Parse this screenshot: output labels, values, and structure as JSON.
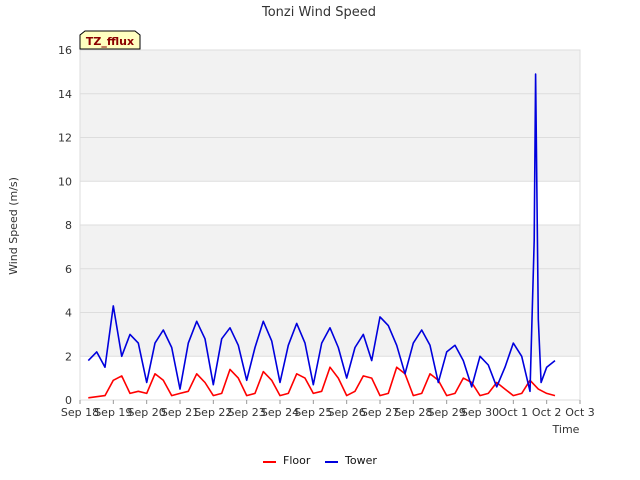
{
  "chart_data": {
    "type": "line",
    "title": "Tonzi Wind Speed",
    "xlabel": "Time",
    "ylabel": "Wind Speed (m/s)",
    "x_ticks": [
      "Sep 18",
      "Sep 19",
      "Sep 20",
      "Sep 21",
      "Sep 22",
      "Sep 23",
      "Sep 24",
      "Sep 25",
      "Sep 26",
      "Sep 27",
      "Sep 28",
      "Sep 29",
      "Sep 30",
      "Oct 1",
      "Oct 2",
      "Oct 3"
    ],
    "y_ticks": [
      "0",
      "2",
      "4",
      "6",
      "8",
      "10",
      "12",
      "14",
      "16"
    ],
    "ylim": [
      0,
      16
    ],
    "xlim_days": [
      0,
      15
    ],
    "grid": true,
    "legend": "bottom",
    "annotation": "TZ_fflux",
    "colors": {
      "Floor": "#ff0000",
      "Tower": "#0000dd",
      "plot_bg_band": "#f2f2f2",
      "annotation_bg": "#ffffc0"
    },
    "series": [
      {
        "name": "Floor",
        "x": [
          "Sep 18 06:00",
          "Sep 18 18:00",
          "Sep 19 00:00",
          "Sep 19 06:00",
          "Sep 19 12:00",
          "Sep 19 18:00",
          "Sep 20 00:00",
          "Sep 20 06:00",
          "Sep 20 12:00",
          "Sep 20 18:00",
          "Sep 21 00:00",
          "Sep 21 06:00",
          "Sep 21 12:00",
          "Sep 21 18:00",
          "Sep 22 00:00",
          "Sep 22 06:00",
          "Sep 22 12:00",
          "Sep 22 18:00",
          "Sep 23 00:00",
          "Sep 23 06:00",
          "Sep 23 12:00",
          "Sep 23 18:00",
          "Sep 24 00:00",
          "Sep 24 06:00",
          "Sep 24 12:00",
          "Sep 24 18:00",
          "Sep 25 00:00",
          "Sep 25 06:00",
          "Sep 25 12:00",
          "Sep 25 18:00",
          "Sep 26 00:00",
          "Sep 26 06:00",
          "Sep 26 12:00",
          "Sep 26 18:00",
          "Sep 27 00:00",
          "Sep 27 06:00",
          "Sep 27 12:00",
          "Sep 27 18:00",
          "Sep 28 00:00",
          "Sep 28 06:00",
          "Sep 28 12:00",
          "Sep 28 18:00",
          "Sep 29 00:00",
          "Sep 29 06:00",
          "Sep 29 12:00",
          "Sep 29 18:00",
          "Sep 30 00:00",
          "Sep 30 06:00",
          "Sep 30 12:00",
          "Sep 30 18:00",
          "Oct 1 00:00",
          "Oct 1 06:00",
          "Oct 1 12:00",
          "Oct 1 18:00",
          "Oct 2 00:00",
          "Oct 2 06:00"
        ],
        "values": [
          0.1,
          0.2,
          0.9,
          1.1,
          0.3,
          0.4,
          0.3,
          1.2,
          0.9,
          0.2,
          0.3,
          0.4,
          1.2,
          0.8,
          0.2,
          0.3,
          1.4,
          1.0,
          0.2,
          0.3,
          1.3,
          0.9,
          0.2,
          0.3,
          1.2,
          1.0,
          0.3,
          0.4,
          1.5,
          1.0,
          0.2,
          0.4,
          1.1,
          1.0,
          0.2,
          0.3,
          1.5,
          1.2,
          0.2,
          0.3,
          1.2,
          0.9,
          0.2,
          0.3,
          1.0,
          0.8,
          0.2,
          0.3,
          0.8,
          0.5,
          0.2,
          0.3,
          0.9,
          0.5,
          0.3,
          0.2
        ]
      },
      {
        "name": "Tower",
        "x": [
          "Sep 18 06:00",
          "Sep 18 12:00",
          "Sep 18 18:00",
          "Sep 19 00:00",
          "Sep 19 06:00",
          "Sep 19 12:00",
          "Sep 19 18:00",
          "Sep 20 00:00",
          "Sep 20 06:00",
          "Sep 20 12:00",
          "Sep 20 18:00",
          "Sep 21 00:00",
          "Sep 21 06:00",
          "Sep 21 12:00",
          "Sep 21 18:00",
          "Sep 22 00:00",
          "Sep 22 06:00",
          "Sep 22 12:00",
          "Sep 22 18:00",
          "Sep 23 00:00",
          "Sep 23 06:00",
          "Sep 23 12:00",
          "Sep 23 18:00",
          "Sep 24 00:00",
          "Sep 24 06:00",
          "Sep 24 12:00",
          "Sep 24 18:00",
          "Sep 25 00:00",
          "Sep 25 06:00",
          "Sep 25 12:00",
          "Sep 25 18:00",
          "Sep 26 00:00",
          "Sep 26 06:00",
          "Sep 26 12:00",
          "Sep 26 18:00",
          "Sep 27 00:00",
          "Sep 27 06:00",
          "Sep 27 12:00",
          "Sep 27 18:00",
          "Sep 28 00:00",
          "Sep 28 06:00",
          "Sep 28 12:00",
          "Sep 28 18:00",
          "Sep 29 00:00",
          "Sep 29 06:00",
          "Sep 29 12:00",
          "Sep 29 18:00",
          "Sep 30 00:00",
          "Sep 30 06:00",
          "Sep 30 12:00",
          "Sep 30 18:00",
          "Oct 1 00:00",
          "Oct 1 06:00",
          "Oct 1 12:00",
          "Oct 1 15:00",
          "Oct 1 16:00",
          "Oct 1 18:00",
          "Oct 1 20:00",
          "Oct 2 00:00",
          "Oct 2 06:00"
        ],
        "values": [
          1.8,
          2.2,
          1.5,
          4.3,
          2.0,
          3.0,
          2.6,
          0.8,
          2.6,
          3.2,
          2.4,
          0.5,
          2.6,
          3.6,
          2.8,
          0.7,
          2.8,
          3.3,
          2.5,
          0.9,
          2.4,
          3.6,
          2.7,
          0.8,
          2.5,
          3.5,
          2.6,
          0.7,
          2.6,
          3.3,
          2.4,
          1.0,
          2.4,
          3.0,
          1.8,
          3.8,
          3.4,
          2.5,
          1.2,
          2.6,
          3.2,
          2.5,
          0.8,
          2.2,
          2.5,
          1.8,
          0.6,
          2.0,
          1.6,
          0.6,
          1.5,
          2.6,
          2.0,
          0.4,
          7.3,
          14.9,
          3.7,
          0.8,
          1.5,
          1.8
        ]
      }
    ]
  }
}
